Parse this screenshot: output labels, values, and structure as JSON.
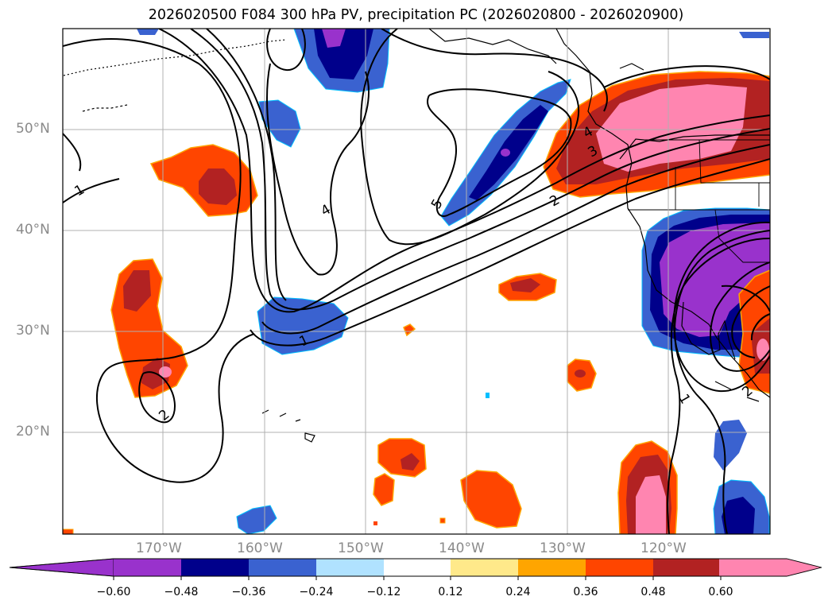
{
  "title": "2026020500 F084 300 hPa PV, precipitation PC (2026020800 - 2026020900)",
  "map": {
    "lon_range": [
      -180,
      -110
    ],
    "lat_range": [
      10,
      60
    ],
    "lon_ticks": [
      "170°W",
      "160°W",
      "150°W",
      "140°W",
      "130°W",
      "120°W"
    ],
    "lat_ticks": [
      "50°N",
      "40°N",
      "30°N",
      "20°N"
    ],
    "grid": true,
    "contour_labels": [
      "1",
      "2",
      "4",
      "5",
      "2",
      "3",
      "4",
      "1",
      "1",
      "2"
    ]
  },
  "colorbar": {
    "extend": "both",
    "tick_labels": [
      "−0.60",
      "−0.48",
      "−0.36",
      "−0.24",
      "−0.12",
      "0.12",
      "0.24",
      "0.36",
      "0.48",
      "0.60"
    ],
    "colors": [
      "#9932cc",
      "#00008b",
      "#3a62d0",
      "#00bfff",
      "#b0e2ff",
      "#ffffff",
      "#ffe98a",
      "#ffa500",
      "#ff4500",
      "#b22222",
      "#ff85b0",
      "#ff85b0"
    ]
  }
}
